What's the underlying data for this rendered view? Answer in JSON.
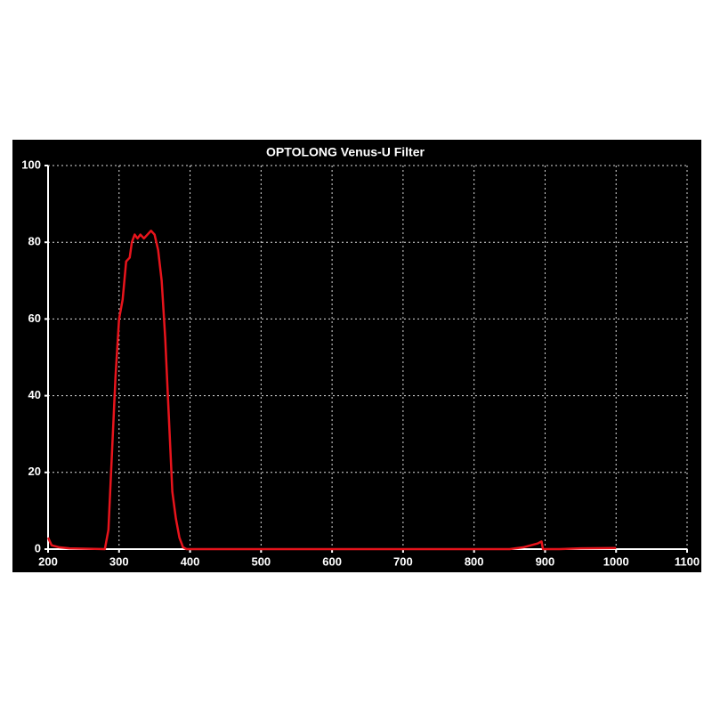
{
  "chart_data": {
    "type": "line",
    "title": "OPTOLONG Venus-U Filter",
    "x": [
      200,
      205,
      215,
      230,
      280,
      285,
      290,
      295,
      300,
      305,
      310,
      315,
      318,
      322,
      326,
      330,
      335,
      340,
      345,
      350,
      355,
      360,
      365,
      370,
      375,
      380,
      385,
      390,
      395,
      850,
      870,
      890,
      895,
      897,
      920,
      950,
      1000
    ],
    "values": [
      3,
      1,
      0.5,
      0.2,
      0,
      5,
      25,
      45,
      60,
      65,
      75,
      76,
      80,
      82,
      81,
      82,
      81,
      82,
      83,
      82,
      78,
      70,
      55,
      35,
      15,
      8,
      3,
      0.5,
      0,
      0,
      0.5,
      1.5,
      2,
      0,
      0,
      0.2,
      0.3
    ],
    "color": "#e8141c",
    "xlim": [
      200,
      1100
    ],
    "xticks": [
      200,
      300,
      400,
      500,
      600,
      700,
      800,
      900,
      1000,
      1100
    ],
    "ylim": [
      0,
      100
    ],
    "yticks": [
      0,
      20,
      40,
      60,
      80,
      100
    ],
    "grid": true
  }
}
